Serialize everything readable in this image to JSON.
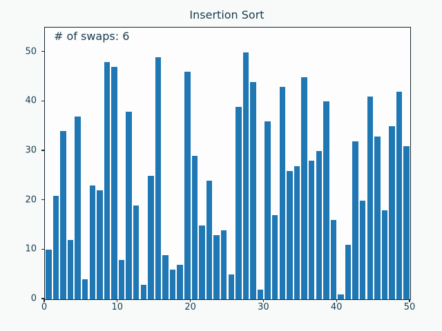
{
  "chart_data": {
    "type": "bar",
    "title": "Insertion Sort",
    "annotation": "# of swaps: 6",
    "values": [
      10,
      21,
      34,
      12,
      37,
      4,
      23,
      22,
      48,
      47,
      8,
      38,
      19,
      3,
      25,
      49,
      9,
      6,
      7,
      46,
      29,
      15,
      24,
      13,
      14,
      5,
      39,
      50,
      44,
      2,
      36,
      17,
      43,
      26,
      27,
      45,
      28,
      30,
      40,
      16,
      1,
      11,
      32,
      20,
      41,
      33,
      18,
      35,
      42,
      31
    ],
    "xticks": [
      0,
      10,
      20,
      30,
      40,
      50
    ],
    "yticks": [
      0,
      10,
      20,
      30,
      40,
      50
    ],
    "xlim": [
      0,
      50
    ],
    "ylim": [
      0,
      55
    ],
    "bar_width_units": 0.8,
    "grid": false,
    "legend": false,
    "colors": {
      "bar": "#1f77b4",
      "text": "#173a4d",
      "spine": "#16242e",
      "figure_bg": "#f8faf9",
      "plot_bg": "#fdfdfd"
    }
  }
}
